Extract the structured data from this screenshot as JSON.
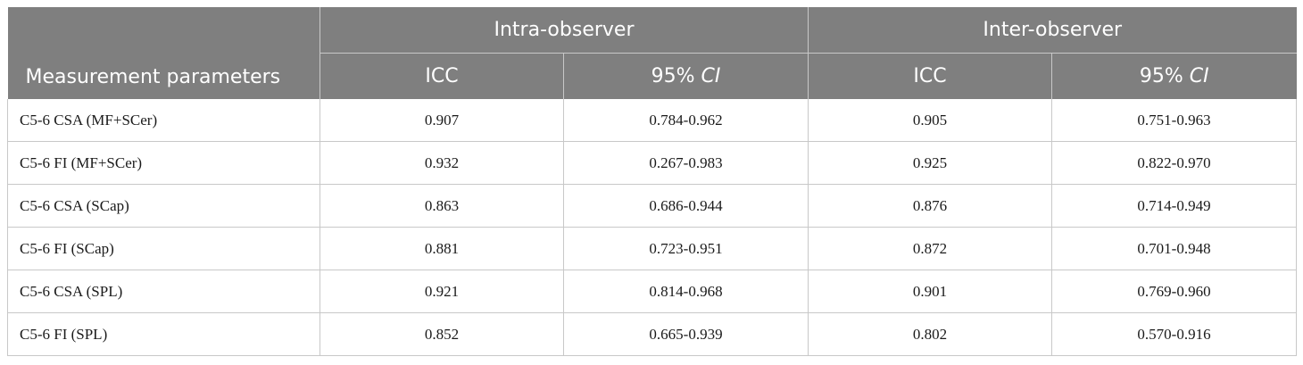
{
  "table": {
    "header": {
      "param_label": "Measurement parameters",
      "groups": [
        "Intra-observer",
        "Inter-observer"
      ],
      "sub": {
        "icc": "ICC",
        "ci_prefix": "95% ",
        "ci_italic": "CI"
      }
    },
    "rows": [
      [
        "C5-6 CSA (MF+SCer)",
        "0.907",
        "0.784-0.962",
        "0.905",
        "0.751-0.963"
      ],
      [
        "C5-6 FI (MF+SCer)",
        "0.932",
        "0.267-0.983",
        "0.925",
        "0.822-0.970"
      ],
      [
        "C5-6 CSA (SCap)",
        "0.863",
        "0.686-0.944",
        "0.876",
        "0.714-0.949"
      ],
      [
        "C5-6 FI (SCap)",
        "0.881",
        "0.723-0.951",
        "0.872",
        "0.701-0.948"
      ],
      [
        "C5-6 CSA (SPL)",
        "0.921",
        "0.814-0.968",
        "0.901",
        "0.769-0.960"
      ],
      [
        "C5-6 FI (SPL)",
        "0.852",
        "0.665-0.939",
        "0.802",
        "0.570-0.916"
      ]
    ]
  }
}
